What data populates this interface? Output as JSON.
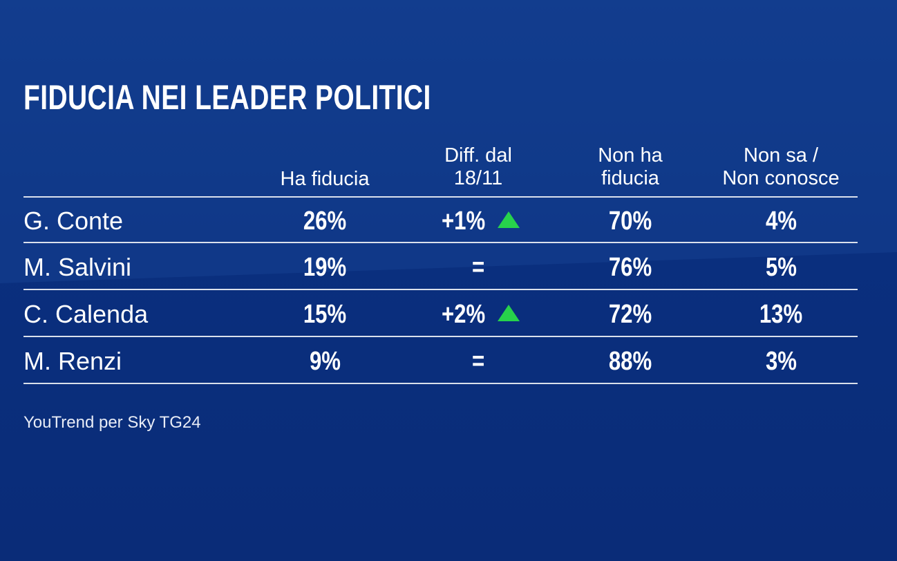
{
  "title": "FIDUCIA NEI LEADER POLITICI",
  "source": "YouTrend per Sky TG24",
  "colors": {
    "background": "#0b2d7a",
    "up_arrow": "#27d24b",
    "text": "#ffffff"
  },
  "headers": {
    "ha_fiducia": "Ha fiducia",
    "diff_line1": "Diff. dal",
    "diff_line2": "18/11",
    "non_ha_line1": "Non ha",
    "non_ha_line2": "fiducia",
    "non_sa_line1": "Non sa /",
    "non_sa_line2": "Non conosce"
  },
  "rows": [
    {
      "name": "G. Conte",
      "ha_fiducia": "26%",
      "diff": "+1%",
      "diff_icon": "up-arrow-icon",
      "non_ha_fiducia": "70%",
      "non_sa": "4%"
    },
    {
      "name": "M. Salvini",
      "ha_fiducia": "19%",
      "diff": "=",
      "non_ha_fiducia": "76%",
      "non_sa": "5%"
    },
    {
      "name": "C. Calenda",
      "ha_fiducia": "15%",
      "diff": "+2%",
      "diff_icon": "up-arrow-icon",
      "non_ha_fiducia": "72%",
      "non_sa": "13%"
    },
    {
      "name": "M. Renzi",
      "ha_fiducia": "9%",
      "diff": "=",
      "non_ha_fiducia": "88%",
      "non_sa": "3%"
    }
  ],
  "chart_data": {
    "type": "table",
    "title": "FIDUCIA NEI LEADER POLITICI",
    "columns": [
      "",
      "Ha fiducia",
      "Diff. dal 18/11",
      "Non ha fiducia",
      "Non sa / Non conosce"
    ],
    "rows": [
      [
        "G. Conte",
        26,
        "+1%",
        70,
        4
      ],
      [
        "M. Salvini",
        19,
        "=",
        76,
        5
      ],
      [
        "C. Calenda",
        15,
        "+2%",
        72,
        13
      ],
      [
        "M. Renzi",
        9,
        "=",
        88,
        3
      ]
    ],
    "units": "%"
  }
}
